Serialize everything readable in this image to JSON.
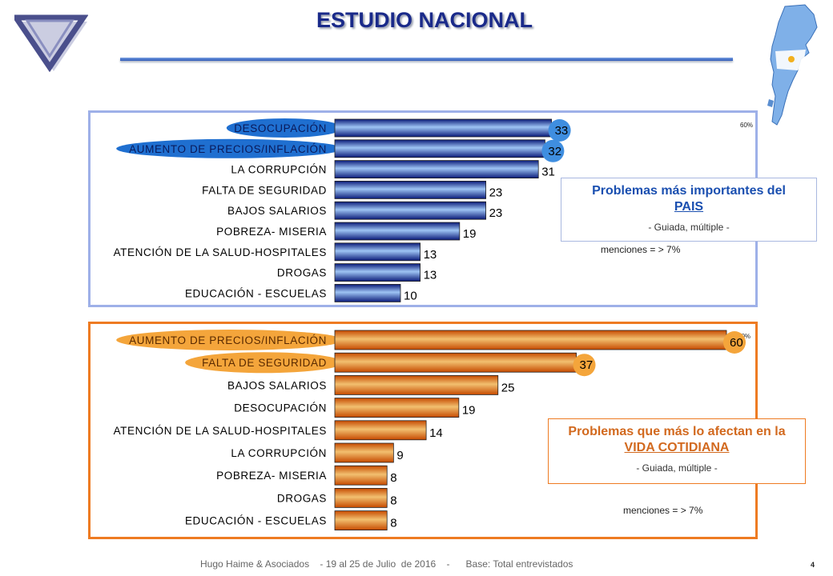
{
  "header": {
    "title": "ESTUDIO NACIONAL"
  },
  "colors": {
    "pais_bar": "#3f74d6",
    "vida_bar": "#e07a12",
    "pais_highlight": "#1f6fd0",
    "vida_highlight": "#f4a53b"
  },
  "chart_data": [
    {
      "type": "bar",
      "orientation": "horizontal",
      "categories": [
        "DESOCUPACIÓN",
        "AUMENTO DE PRECIOS/INFLACIÓN",
        "LA CORRUPCIÓN",
        "FALTA DE SEGURIDAD",
        "BAJOS SALARIOS",
        "POBREZA- MISERIA",
        "ATENCIÓN DE LA SALUD-HOSPITALES",
        "DROGAS",
        "EDUCACIÓN - ESCUELAS"
      ],
      "values": [
        33,
        32,
        31,
        23,
        23,
        19,
        13,
        13,
        10
      ],
      "highlighted": [
        "DESOCUPACIÓN",
        "AUMENTO DE PRECIOS/INFLACIÓN"
      ],
      "xlim": [
        0,
        60
      ],
      "scale_label": "60%",
      "grid": false
    },
    {
      "type": "bar",
      "orientation": "horizontal",
      "categories": [
        "AUMENTO DE PRECIOS/INFLACIÓN",
        "FALTA DE SEGURIDAD",
        "BAJOS SALARIOS",
        "DESOCUPACIÓN",
        "ATENCIÓN DE LA SALUD-HOSPITALES",
        "LA CORRUPCIÓN",
        "POBREZA- MISERIA",
        "DROGAS",
        "EDUCACIÓN - ESCUELAS"
      ],
      "values": [
        60,
        37,
        25,
        19,
        14,
        9,
        8,
        8,
        8
      ],
      "highlighted": [
        "AUMENTO DE PRECIOS/INFLACIÓN",
        "FALTA DE SEGURIDAD"
      ],
      "xlim": [
        0,
        60
      ],
      "scale_label": "60%",
      "grid": false
    }
  ],
  "notes": {
    "pais": {
      "title_line1": "Problemas más importantes del",
      "title_line2": "PAIS",
      "subtitle": "- Guiada, múltiple -",
      "mentions": "menciones = > 7%"
    },
    "vida": {
      "title_line1": "Problemas que más lo afectan en la",
      "title_line2": "VIDA COTIDIANA",
      "subtitle": "- Guiada, múltiple -",
      "mentions": "menciones = > 7%"
    }
  },
  "footer": {
    "text": "Hugo Haime & Asociados    - 19 al 25 de Julio  de 2016    -      Base: Total entrevistados",
    "page": "4"
  }
}
